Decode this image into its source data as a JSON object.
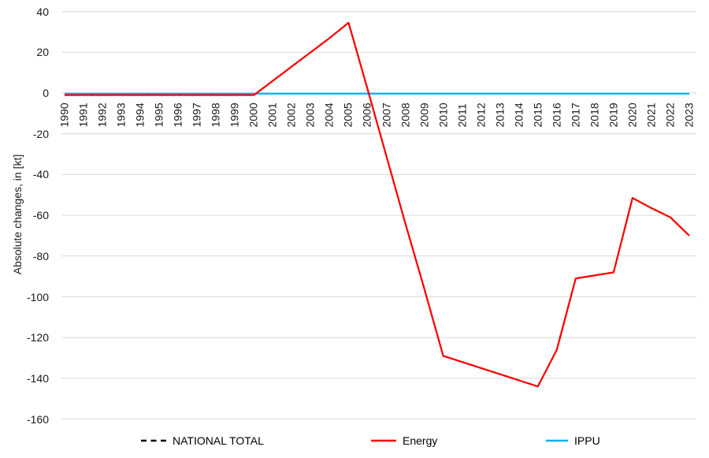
{
  "chart_data": {
    "type": "line",
    "title": "",
    "xlabel": "",
    "ylabel": "Absolute changes, in [kt]",
    "ylim": [
      -160,
      40
    ],
    "y_ticks": [
      40,
      20,
      0,
      -20,
      -40,
      -60,
      -80,
      -100,
      -120,
      -140,
      -160
    ],
    "grid": "horizontal",
    "legend_position": "bottom",
    "categories": [
      "1990",
      "1991",
      "1992",
      "1993",
      "1994",
      "1995",
      "1996",
      "1997",
      "1998",
      "1999",
      "2000",
      "2001",
      "2002",
      "2003",
      "2004",
      "2005",
      "2006",
      "2007",
      "2008",
      "2009",
      "2010",
      "2011",
      "2012",
      "2013",
      "2014",
      "2015",
      "2016",
      "2017",
      "2018",
      "2019",
      "2020",
      "2021",
      "2022",
      "2023"
    ],
    "series": [
      {
        "name": "NATIONAL TOTAL",
        "color": "#000000",
        "style": "dashed",
        "hidden_behind_energy": true,
        "values": [
          -1,
          -1,
          -1,
          -1,
          -1,
          -1,
          -1,
          -1,
          -1,
          -1,
          -1,
          6,
          13,
          20,
          27,
          34.5,
          2,
          -31,
          -64,
          -96,
          -129,
          -132,
          -135,
          -138,
          -141,
          -144,
          -126,
          -91,
          -89.5,
          -88,
          -51.5,
          -56.5,
          -61,
          -70
        ]
      },
      {
        "name": "IPPU",
        "color": "#00B0F0",
        "style": "solid",
        "values": [
          -0.3,
          -0.3,
          -0.3,
          -0.3,
          -0.3,
          -0.3,
          -0.3,
          -0.3,
          -0.3,
          -0.3,
          -0.3,
          -0.3,
          -0.3,
          -0.3,
          -0.3,
          -0.3,
          -0.3,
          -0.3,
          -0.3,
          -0.3,
          -0.3,
          -0.3,
          -0.3,
          -0.3,
          -0.3,
          -0.3,
          -0.3,
          -0.3,
          -0.3,
          -0.3,
          -0.3,
          -0.3,
          -0.3,
          -0.3
        ]
      },
      {
        "name": "Energy",
        "color": "#FF0000",
        "style": "solid",
        "values": [
          -1,
          -1,
          -1,
          -1,
          -1,
          -1,
          -1,
          -1,
          -1,
          -1,
          -1,
          6,
          13,
          20,
          27,
          34.5,
          2,
          -31,
          -64,
          -96,
          -129,
          -132,
          -135,
          -138,
          -141,
          -144,
          -126,
          -91,
          -89.5,
          -88,
          -51.5,
          -56.5,
          -61,
          -70
        ]
      }
    ],
    "legend_order": [
      "NATIONAL TOTAL",
      "Energy",
      "IPPU"
    ]
  },
  "colors": {
    "gridline": "#D9D9D9",
    "text": "#1a1a1a",
    "background": "#ffffff"
  }
}
